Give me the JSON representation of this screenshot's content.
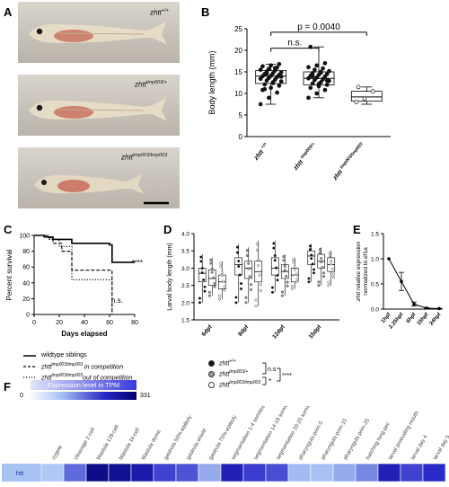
{
  "panels": {
    "A": {
      "letter": "A",
      "fish_labels": [
        {
          "gene": "zhtt",
          "genotype": "+/+"
        },
        {
          "gene": "zhtt",
          "genotype": "tmp003/+"
        },
        {
          "gene": "zhtt",
          "genotype": "tmp003/tmp003"
        }
      ]
    },
    "B": {
      "letter": "B"
    },
    "C": {
      "letter": "C",
      "legend": [
        {
          "label": "wildtype siblings",
          "style": "solid"
        },
        {
          "gene": "zhtt",
          "genotype": "tmp003/tmp003",
          "suffix": " in competition",
          "style": "dashed"
        },
        {
          "gene": "zhtt",
          "genotype": "tmp003/tmp003",
          "suffix": "out of competition",
          "style": "dotted"
        }
      ]
    },
    "D": {
      "letter": "D",
      "legend": [
        {
          "gene": "zhtt",
          "genotype": "+/+",
          "fill": "#111111"
        },
        {
          "gene": "zhtt",
          "genotype": "tmp003/+",
          "fill": "#9a9a9a"
        },
        {
          "gene": "zhtt",
          "genotype": "tmp003/tmp003",
          "fill": "#ffffff"
        }
      ],
      "stats": {
        "ns": "n.s",
        "star": "*",
        "four_star": "****"
      }
    },
    "E": {
      "letter": "E"
    },
    "F": {
      "letter": "F",
      "scale_title": "Expression level in TPM",
      "scale_min": "0",
      "scale_max": "331"
    }
  },
  "chart_data": [
    {
      "id": "B",
      "type": "box",
      "ylabel": "Body length (mm)",
      "ylim": [
        0,
        25
      ],
      "yticks": [
        0,
        5,
        10,
        15,
        20,
        25
      ],
      "categories": [
        "zhtt +/+",
        "zhtt tmp003/+",
        "zhtt tmp003/tmp003"
      ],
      "category_labels": [
        {
          "gene": "zhtt",
          "genotype": "+/+"
        },
        {
          "gene": "zhtt",
          "genotype": "tmp003/+"
        },
        {
          "gene": "zhtt",
          "genotype": "tmp003/tmp003"
        }
      ],
      "boxes": [
        {
          "min": 7.5,
          "q1": 12.3,
          "median": 14.0,
          "q3": 15.3,
          "max": 16.8
        },
        {
          "min": 9.0,
          "q1": 12.0,
          "median": 13.5,
          "q3": 15.0,
          "max": 20.8
        },
        {
          "min": 7.5,
          "q1": 8.2,
          "median": 9.2,
          "q3": 10.5,
          "max": 11.5
        }
      ],
      "points": [
        [
          7.5,
          9.0,
          10.2,
          10.8,
          11.3,
          11.8,
          12.1,
          12.4,
          12.8,
          13.0,
          13.2,
          13.4,
          13.6,
          13.8,
          14.0,
          14.1,
          14.3,
          14.5,
          14.7,
          14.9,
          15.1,
          15.3,
          15.5,
          15.7,
          16.0,
          16.3,
          16.5,
          16.8,
          11.0,
          12.6,
          13.9,
          14.6,
          15.9
        ],
        [
          9.0,
          10.0,
          10.8,
          11.3,
          11.7,
          12.0,
          12.3,
          12.6,
          12.9,
          13.1,
          13.3,
          13.5,
          13.7,
          13.9,
          14.1,
          14.3,
          14.5,
          14.7,
          15.0,
          15.2,
          15.5,
          15.8,
          16.1,
          16.5,
          17.0,
          20.8,
          12.2,
          13.0,
          14.0,
          14.8
        ],
        [
          8.0,
          8.8,
          10.5,
          11.5
        ]
      ],
      "annotations": [
        {
          "text": "n.s.",
          "from": 0,
          "to": 1,
          "y": 20.5
        },
        {
          "text": "p = 0.0040",
          "from": 0,
          "to": 2,
          "y": 24.2
        }
      ]
    },
    {
      "id": "C",
      "type": "line",
      "xlabel": "Days elapsed",
      "ylabel": "Percent survival",
      "xlim": [
        0,
        80
      ],
      "ylim": [
        0,
        100
      ],
      "xticks": [
        0,
        20,
        40,
        60,
        80
      ],
      "yticks": [
        0,
        20,
        40,
        60,
        80,
        100
      ],
      "series": [
        {
          "style": "solid",
          "steps": [
            [
              0,
              100
            ],
            [
              8,
              98
            ],
            [
              15,
              95
            ],
            [
              30,
              90
            ],
            [
              60,
              88
            ],
            [
              62,
              66
            ],
            [
              80,
              66
            ]
          ]
        },
        {
          "style": "dashed",
          "steps": [
            [
              0,
              100
            ],
            [
              10,
              97
            ],
            [
              15,
              90
            ],
            [
              22,
              80
            ],
            [
              30,
              56
            ],
            [
              60,
              56
            ],
            [
              62,
              0
            ]
          ]
        },
        {
          "style": "dotted",
          "steps": [
            [
              0,
              100
            ],
            [
              12,
              95
            ],
            [
              20,
              86
            ],
            [
              30,
              44
            ],
            [
              60,
              44
            ],
            [
              62,
              0
            ]
          ]
        }
      ],
      "annotations": [
        {
          "text": "****",
          "x": 82,
          "y": 66
        },
        {
          "text": "n.s.",
          "x": 66,
          "y": 18
        }
      ]
    },
    {
      "id": "D",
      "type": "box",
      "ylabel": "Larval body length (mm)",
      "ylim": [
        1.5,
        4.0
      ],
      "yticks": [
        1.5,
        2.0,
        2.5,
        3.0,
        3.5,
        4.0
      ],
      "categories": [
        "6dpf",
        "8dpf",
        "12dpf",
        "15dpf"
      ],
      "groups": [
        [
          {
            "min": 2.0,
            "q1": 2.6,
            "median": 2.85,
            "q3": 3.0,
            "max": 3.4
          },
          {
            "min": 2.2,
            "q1": 2.5,
            "median": 2.7,
            "q3": 2.95,
            "max": 3.3
          },
          {
            "min": 2.1,
            "q1": 2.4,
            "median": 2.6,
            "q3": 2.8,
            "max": 3.2
          }
        ],
        [
          {
            "min": 2.0,
            "q1": 2.8,
            "median": 3.1,
            "q3": 3.3,
            "max": 3.7
          },
          {
            "min": 2.0,
            "q1": 2.7,
            "median": 3.0,
            "q3": 3.2,
            "max": 3.6
          },
          {
            "min": 1.9,
            "q1": 2.6,
            "median": 2.9,
            "q3": 3.2,
            "max": 3.8
          }
        ],
        [
          {
            "min": 2.3,
            "q1": 2.8,
            "median": 3.0,
            "q3": 3.3,
            "max": 3.8
          },
          {
            "min": 2.2,
            "q1": 2.7,
            "median": 2.9,
            "q3": 3.1,
            "max": 3.4
          },
          {
            "min": 2.4,
            "q1": 2.6,
            "median": 2.8,
            "q3": 3.0,
            "max": 3.3
          }
        ],
        [
          {
            "min": 2.6,
            "q1": 3.1,
            "median": 3.35,
            "q3": 3.5,
            "max": 3.7
          },
          {
            "min": 2.5,
            "q1": 3.0,
            "median": 3.2,
            "q3": 3.4,
            "max": 3.6
          },
          {
            "min": 2.5,
            "q1": 2.9,
            "median": 3.1,
            "q3": 3.3,
            "max": 3.5
          }
        ]
      ]
    },
    {
      "id": "E",
      "type": "line",
      "ylabel_gene": "zhtt",
      "ylabel_rest": " relative expression",
      "ylabel2": "normalized to ef1a",
      "ylim": [
        0,
        1.5
      ],
      "yticks": [
        0.0,
        0.5,
        1.0,
        1.5
      ],
      "categories": [
        "1hpf",
        "2.25hpf",
        "6hpf",
        "15hpf",
        "24hpf"
      ],
      "values": [
        1.0,
        0.55,
        0.1,
        0.02,
        0.01
      ],
      "errors": [
        0.0,
        0.18,
        0.04,
        0.01,
        0.005
      ]
    },
    {
      "id": "F",
      "type": "heatmap",
      "row_label": "htt",
      "min": 0,
      "max": 331,
      "categories": [
        "zygote",
        "cleavage 2-cell",
        "blastula 128-cell",
        "blastula 1k-cell",
        "blastula dome",
        "gastrula 50%-epiboly",
        "gastrula shield",
        "gastrula 75%-epiboly",
        "segmentation 1-4 somites",
        "segmentation 14-19 somites",
        "segmentation 20-25 somites",
        "pharyngula prim-5",
        "pharyngula prim-15",
        "pharyngula prim-25",
        "hatching long-pec",
        "larval protruding mouth",
        "larval day 4",
        "larval day 5"
      ],
      "values": [
        90,
        175,
        300,
        290,
        265,
        210,
        195,
        120,
        250,
        215,
        200,
        105,
        100,
        120,
        150,
        250,
        210,
        230
      ]
    }
  ]
}
